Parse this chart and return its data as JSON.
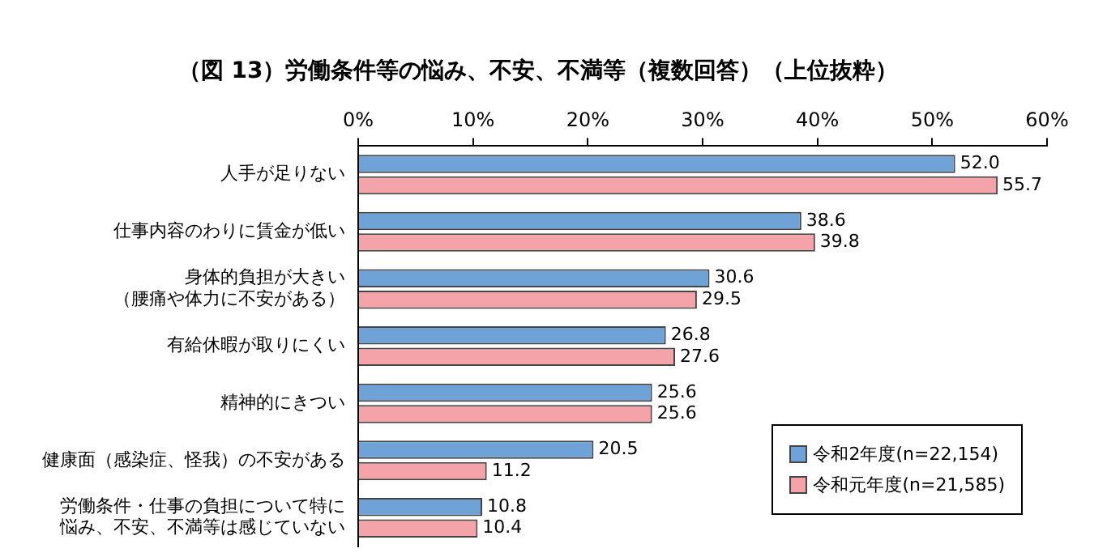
{
  "chart_data": {
    "type": "bar",
    "orientation": "horizontal",
    "title": "（図 13）労働条件等の悩み、不安、不満等（複数回答）（上位抜粋）",
    "categories": [
      "人手が足りない",
      "仕事内容のわりに賃金が低い",
      "身体的負担が大きい（腰痛や体力に不安がある）",
      "有給休暇が取りにくい",
      "精神的にきつい",
      "健康面（感染症、怪我）の不安がある",
      "労働条件・仕事の負担について特に悩み、不安、不満等は感じていない"
    ],
    "series": [
      {
        "name": "令和2年度(n=22,154)",
        "color": "#6fa3d8",
        "values": [
          52.0,
          38.6,
          30.6,
          26.8,
          25.6,
          20.5,
          10.8
        ],
        "value_labels": [
          "52.0",
          "38.6",
          "30.6",
          "26.8",
          "25.6",
          "20.5",
          "10.8"
        ]
      },
      {
        "name": "令和元年度(n=21,585)",
        "color": "#f4a3a8",
        "values": [
          55.7,
          39.8,
          29.5,
          27.6,
          25.6,
          11.2,
          10.4
        ],
        "value_labels": [
          "55.7",
          "39.8",
          "29.5",
          "27.6",
          "25.6",
          "11.2",
          "10.4"
        ]
      }
    ],
    "xlim": [
      0,
      60
    ],
    "xticks": [
      {
        "value": 0,
        "label": "0%"
      },
      {
        "value": 10,
        "label": "10%"
      },
      {
        "value": 20,
        "label": "20%"
      },
      {
        "value": 30,
        "label": "30%"
      },
      {
        "value": 40,
        "label": "40%"
      },
      {
        "value": 50,
        "label": "50%"
      },
      {
        "value": 60,
        "label": "60%"
      }
    ],
    "grid": false,
    "legend": "bottom right"
  }
}
